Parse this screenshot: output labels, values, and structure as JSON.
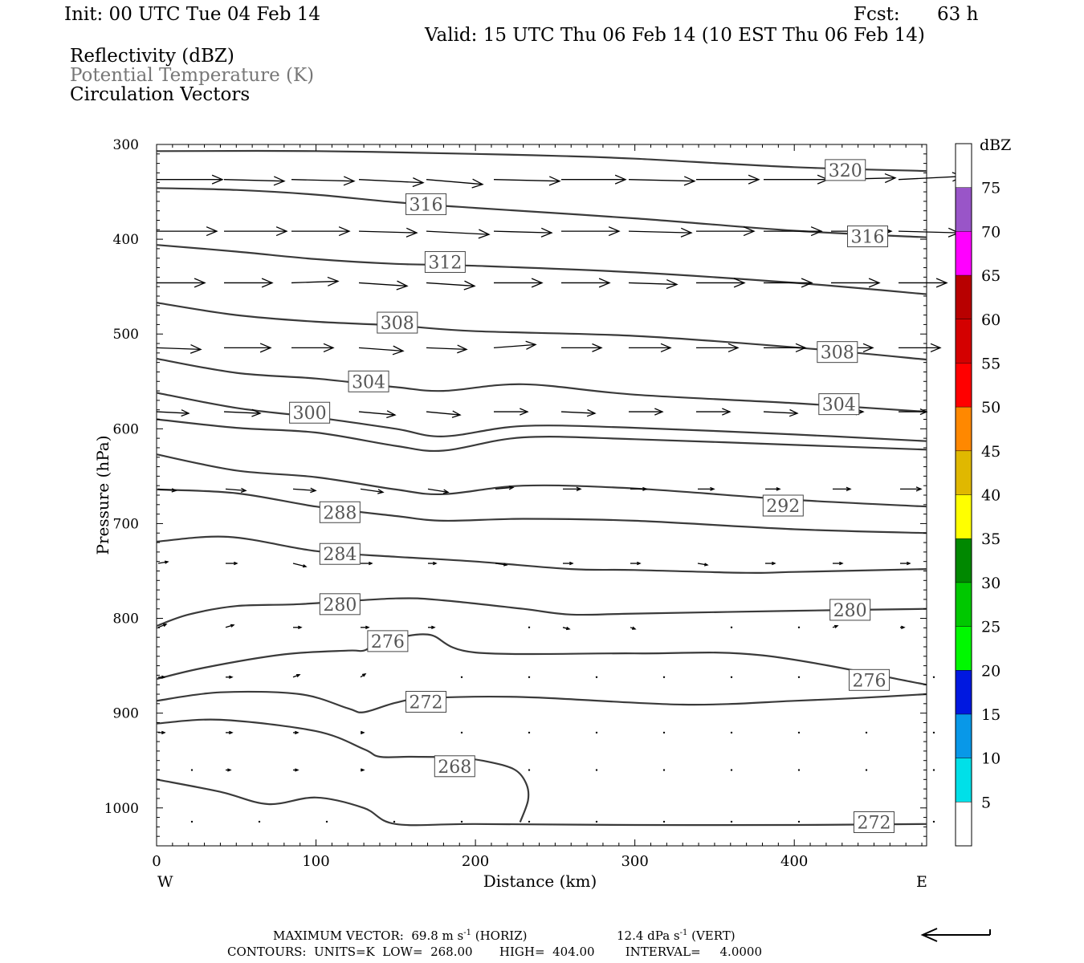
{
  "header": {
    "init": "Init: 00 UTC Tue 04 Feb 14",
    "fcst_label": "Fcst:",
    "fcst_value": "63 h",
    "valid": "Valid: 15 UTC Thu 06 Feb 14 (10 EST Thu 06 Feb 14)",
    "fields": [
      "Reflectivity (dBZ)",
      "Potential Temperature (K)",
      "Circulation Vectors"
    ]
  },
  "footer": {
    "max_vector": "MAXIMUM VECTOR:  69.8 m s",
    "max_vector_sup": "-1",
    "horiz": " (HORIZ)",
    "vert_val": "12.4 dPa s",
    "vert_sup": "-1",
    "vert": " (VERT)",
    "contours": "CONTOURS:  UNITS=K  LOW=  268.00       HIGH=  404.00        INTERVAL=     4.0000"
  },
  "colors": {
    "contour": "#3a3a3a",
    "vector": "#000000",
    "label_text": "#555555",
    "theta_legend": "#777777"
  },
  "chart_data": {
    "type": "line",
    "title": "",
    "xlabel": "Distance (km)",
    "ylabel": "Pressure (hPa)",
    "xlim": [
      0,
      483
    ],
    "ylim": [
      1040,
      300
    ],
    "y_scale": "linear-inverted",
    "x_ticks": [
      0,
      100,
      200,
      300,
      400
    ],
    "y_ticks": [
      300,
      400,
      500,
      600,
      700,
      800,
      900,
      1000
    ],
    "x_end_labels": {
      "left": "W",
      "right": "E"
    },
    "contour_labels": [
      {
        "text": "320",
        "x": 432,
        "p": 327
      },
      {
        "text": "316",
        "x": 169,
        "p": 363
      },
      {
        "text": "316",
        "x": 446,
        "p": 397
      },
      {
        "text": "312",
        "x": 181,
        "p": 424
      },
      {
        "text": "308",
        "x": 151,
        "p": 488
      },
      {
        "text": "308",
        "x": 427,
        "p": 519
      },
      {
        "text": "304",
        "x": 133,
        "p": 550
      },
      {
        "text": "304",
        "x": 428,
        "p": 574
      },
      {
        "text": "300",
        "x": 96,
        "p": 583
      },
      {
        "text": "292",
        "x": 393,
        "p": 681
      },
      {
        "text": "288",
        "x": 115,
        "p": 688
      },
      {
        "text": "284",
        "x": 115,
        "p": 732
      },
      {
        "text": "280",
        "x": 115,
        "p": 785
      },
      {
        "text": "280",
        "x": 435,
        "p": 791
      },
      {
        "text": "276",
        "x": 145,
        "p": 824
      },
      {
        "text": "276",
        "x": 447,
        "p": 865
      },
      {
        "text": "272",
        "x": 169,
        "p": 888
      },
      {
        "text": "268",
        "x": 187,
        "p": 956
      },
      {
        "text": "272",
        "x": 450,
        "p": 1015
      }
    ],
    "contours": [
      {
        "value": 320,
        "x": [
          0,
          100,
          200,
          250,
          300,
          400,
          483
        ],
        "p": [
          307,
          307,
          310,
          312,
          315,
          324,
          328
        ]
      },
      {
        "value": 316,
        "x": [
          0,
          50,
          100,
          150,
          200,
          300,
          400,
          483
        ],
        "p": [
          346,
          348,
          353,
          361,
          367,
          378,
          391,
          398
        ]
      },
      {
        "value": 312,
        "x": [
          0,
          50,
          100,
          150,
          200,
          300,
          400,
          483
        ],
        "p": [
          406,
          413,
          421,
          426,
          428,
          435,
          446,
          458
        ]
      },
      {
        "value": 308,
        "x": [
          0,
          50,
          100,
          150,
          200,
          300,
          400,
          483
        ],
        "p": [
          467,
          480,
          487,
          491,
          497,
          502,
          514,
          527
        ]
      },
      {
        "value": 304,
        "x": [
          0,
          50,
          100,
          150,
          180,
          230,
          300,
          400,
          483
        ],
        "p": [
          526,
          541,
          547,
          556,
          560,
          553,
          564,
          573,
          582
        ]
      },
      {
        "value": 300,
        "x": [
          0,
          50,
          100,
          150,
          180,
          230,
          300,
          400,
          483
        ],
        "p": [
          562,
          578,
          588,
          600,
          608,
          597,
          599,
          606,
          613
        ]
      },
      {
        "value": 296,
        "x": [
          0,
          50,
          100,
          150,
          180,
          230,
          300,
          400,
          483
        ],
        "p": [
          590,
          599,
          604,
          618,
          623,
          609,
          611,
          617,
          622
        ]
      },
      {
        "value": 292,
        "x": [
          0,
          50,
          100,
          150,
          180,
          230,
          300,
          400,
          483
        ],
        "p": [
          627,
          644,
          651,
          664,
          669,
          660,
          663,
          675,
          682
        ]
      },
      {
        "value": 288,
        "x": [
          0,
          50,
          100,
          150,
          180,
          230,
          300,
          400,
          483
        ],
        "p": [
          664,
          668,
          682,
          692,
          697,
          695,
          697,
          706,
          710
        ]
      },
      {
        "value": 284,
        "x": [
          0,
          45,
          100,
          150,
          200,
          260,
          300,
          370,
          400,
          483
        ],
        "p": [
          719,
          714,
          729,
          735,
          740,
          748,
          749,
          752,
          751,
          748
        ]
      },
      {
        "value": 280,
        "x": [
          0,
          20,
          50,
          90,
          150,
          180,
          230,
          260,
          300,
          400,
          483
        ],
        "p": [
          808,
          796,
          787,
          785,
          779,
          781,
          790,
          796,
          795,
          792,
          790
        ]
      },
      {
        "value": 276,
        "x": [
          0,
          30,
          80,
          120,
          130,
          140,
          170,
          200,
          300,
          380,
          483
        ],
        "p": [
          864,
          852,
          838,
          834,
          834,
          826,
          817,
          836,
          837,
          839,
          870
        ]
      },
      {
        "value": 272,
        "x": [
          0,
          40,
          90,
          120,
          130,
          150,
          170,
          230,
          330,
          400,
          440,
          483
        ],
        "p": [
          887,
          878,
          880,
          895,
          899,
          889,
          884,
          883,
          891,
          887,
          884,
          880
        ]
      },
      {
        "value": 268,
        "x": [
          0,
          40,
          100,
          130,
          140,
          160,
          190,
          210,
          225,
          232,
          233,
          228
        ],
        "p": [
          911,
          907,
          919,
          938,
          946,
          946,
          947,
          952,
          960,
          975,
          992,
          1015
        ]
      },
      {
        "value": 272,
        "x": [
          0,
          40,
          70,
          100,
          130,
          150,
          200,
          300,
          400,
          483
        ],
        "p": [
          970,
          983,
          996,
          989,
          1000,
          1017,
          1017,
          1018,
          1018,
          1017
        ]
      },
      {
        "value": 272,
        "x": [
          450,
          453,
          450,
          442,
          430,
          400,
          350,
          300,
          250,
          200,
          150,
          100,
          50,
          0
        ],
        "p": [
          1000,
          980,
          962,
          955,
          950,
          945,
          935,
          912,
          903,
          887,
          884,
          880,
          900,
          908
        ]
      }
    ]
  }
}
